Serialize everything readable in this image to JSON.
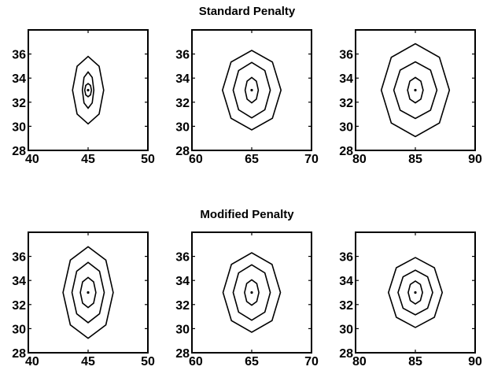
{
  "chart_data": [
    {
      "type": "contour",
      "row_title": "Standard Penalty",
      "panels": [
        {
          "xlim": [
            40,
            50
          ],
          "ylim": [
            28,
            38
          ],
          "xticks": [
            40,
            45,
            50
          ],
          "yticks": [
            28,
            30,
            32,
            34,
            36
          ],
          "peak": [
            45,
            33
          ],
          "contours": [
            {
              "a": 0.28,
              "b": 0.55
            },
            {
              "a": 0.48,
              "b": 1.5
            },
            {
              "a": 1.3,
              "b": 2.8
            }
          ]
        },
        {
          "xlim": [
            60,
            70
          ],
          "ylim": [
            28,
            38
          ],
          "xticks": [
            60,
            65,
            70
          ],
          "yticks": [
            28,
            30,
            32,
            34,
            36
          ],
          "peak": [
            65,
            33
          ],
          "contours": [
            {
              "a": 0.55,
              "b": 1.05
            },
            {
              "a": 1.55,
              "b": 2.3
            },
            {
              "a": 2.45,
              "b": 3.3
            }
          ]
        },
        {
          "xlim": [
            80,
            90
          ],
          "ylim": [
            28,
            38
          ],
          "xticks": [
            80,
            85,
            90
          ],
          "yticks": [
            28,
            30,
            32,
            34,
            36
          ],
          "peak": [
            85,
            33
          ],
          "contours": [
            {
              "a": 0.65,
              "b": 1.05
            },
            {
              "a": 1.8,
              "b": 2.35
            },
            {
              "a": 2.85,
              "b": 3.85
            }
          ]
        }
      ]
    },
    {
      "type": "contour",
      "row_title": "Modified Penalty",
      "panels": [
        {
          "xlim": [
            40,
            50
          ],
          "ylim": [
            28,
            38
          ],
          "xticks": [
            40,
            45,
            50
          ],
          "yticks": [
            28,
            30,
            32,
            34,
            36
          ],
          "peak": [
            45,
            33
          ],
          "contours": [
            {
              "a": 0.65,
              "b": 1.25
            },
            {
              "a": 1.35,
              "b": 2.5
            },
            {
              "a": 2.1,
              "b": 3.8
            }
          ]
        },
        {
          "xlim": [
            60,
            70
          ],
          "ylim": [
            28,
            38
          ],
          "xticks": [
            60,
            65,
            70
          ],
          "yticks": [
            28,
            30,
            32,
            34,
            36
          ],
          "peak": [
            65,
            33
          ],
          "contours": [
            {
              "a": 0.6,
              "b": 1.05
            },
            {
              "a": 1.55,
              "b": 2.3
            },
            {
              "a": 2.4,
              "b": 3.3
            }
          ]
        },
        {
          "xlim": [
            80,
            90
          ],
          "ylim": [
            28,
            38
          ],
          "xticks": [
            80,
            85,
            90
          ],
          "yticks": [
            28,
            30,
            32,
            34,
            36
          ],
          "peak": [
            85,
            33
          ],
          "contours": [
            {
              "a": 0.6,
              "b": 0.95
            },
            {
              "a": 1.45,
              "b": 1.85
            },
            {
              "a": 2.25,
              "b": 2.9
            }
          ]
        }
      ]
    }
  ]
}
